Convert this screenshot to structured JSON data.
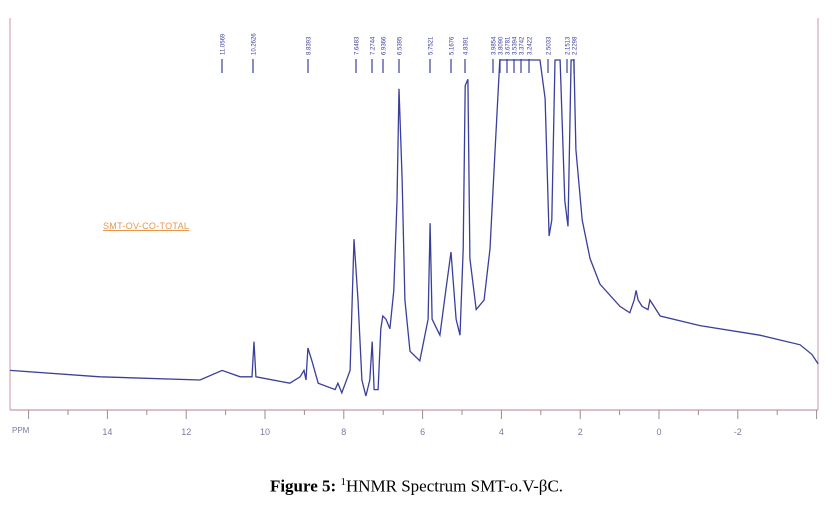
{
  "chart_data": {
    "type": "line",
    "title": "",
    "xlabel": "PPM",
    "ylabel": "",
    "xlim": [
      16.47,
      -4.1
    ],
    "x_reversed": true,
    "x_ticks": [
      "14",
      "12",
      "10",
      "8",
      "6",
      "4",
      "2",
      "0",
      "-2"
    ],
    "x_tick_values": [
      14,
      12,
      10,
      8,
      6,
      4,
      2,
      0,
      -2
    ],
    "grid": false,
    "sample_label": "SMT-OV-CO-TOTAL",
    "colors": {
      "spectrum": "#3a3f9a",
      "axis": "#c89aa0",
      "sample_label": "#e8964a"
    },
    "peak_labels": [
      "11.0569",
      "10.2626",
      "8.8393",
      "7.6483",
      "7.2744",
      "6.9366",
      "6.5395",
      "5.7521",
      "5.1676",
      "4.8391",
      "3.9854",
      "3.8090",
      "3.6781",
      "3.5394",
      "3.3742",
      "3.2422",
      "2.5033",
      "2.1513",
      "2.2298"
    ],
    "series": [
      {
        "ppm": [
          16.47,
          14.19,
          11.65,
          11.09,
          10.63,
          10.33,
          10.28,
          10.23,
          9.37,
          9.11,
          9.01,
          8.96,
          8.91,
          8.81,
          8.65,
          8.22,
          8.15,
          8.05,
          7.84,
          7.74,
          7.64,
          7.54,
          7.44,
          7.34,
          7.28,
          7.23,
          7.13,
          7.06,
          7.01,
          6.93,
          6.83,
          6.73,
          6.65,
          6.6,
          6.52,
          6.45,
          6.32,
          6.07,
          5.86,
          5.81,
          5.76,
          5.56,
          5.41,
          5.28,
          5.15,
          5.05,
          4.97,
          4.92,
          4.85,
          4.8,
          4.64,
          4.44,
          4.29,
          4.16,
          4.04,
          3.02,
          2.89,
          2.79,
          2.72,
          2.64,
          2.51,
          2.39,
          2.31,
          2.23,
          2.16,
          2.11,
          1.95,
          1.75,
          1.5,
          0.99,
          0.74,
          0.63,
          0.58,
          0.53,
          0.43,
          0.28,
          0.23,
          -0.03,
          -1.04,
          -2.56,
          -3.58,
          -3.88,
          -4.04
        ],
        "intensity": [
          3,
          1,
          0,
          3,
          1,
          1,
          12,
          1,
          -1,
          1,
          3,
          0,
          10,
          6,
          -1,
          -3,
          -1,
          -4,
          3,
          44,
          25,
          0,
          -5,
          0,
          12,
          -3,
          -3,
          16,
          20,
          19,
          16,
          28,
          56,
          91,
          63,
          25,
          9,
          6,
          19,
          49,
          19,
          14,
          28,
          40,
          19,
          14,
          41,
          92,
          94,
          38,
          22,
          25,
          41,
          72,
          100,
          100,
          88,
          45,
          50,
          100,
          100,
          56,
          48,
          100,
          100,
          72,
          50,
          38,
          30,
          23,
          21,
          25,
          28,
          25,
          23,
          22,
          25,
          20,
          17,
          14,
          11,
          8,
          5
        ]
      }
    ]
  },
  "caption": {
    "label": "Figure 5:",
    "superscript": "1",
    "text": "HNMR Spectrum SMT-o.V-βC."
  }
}
